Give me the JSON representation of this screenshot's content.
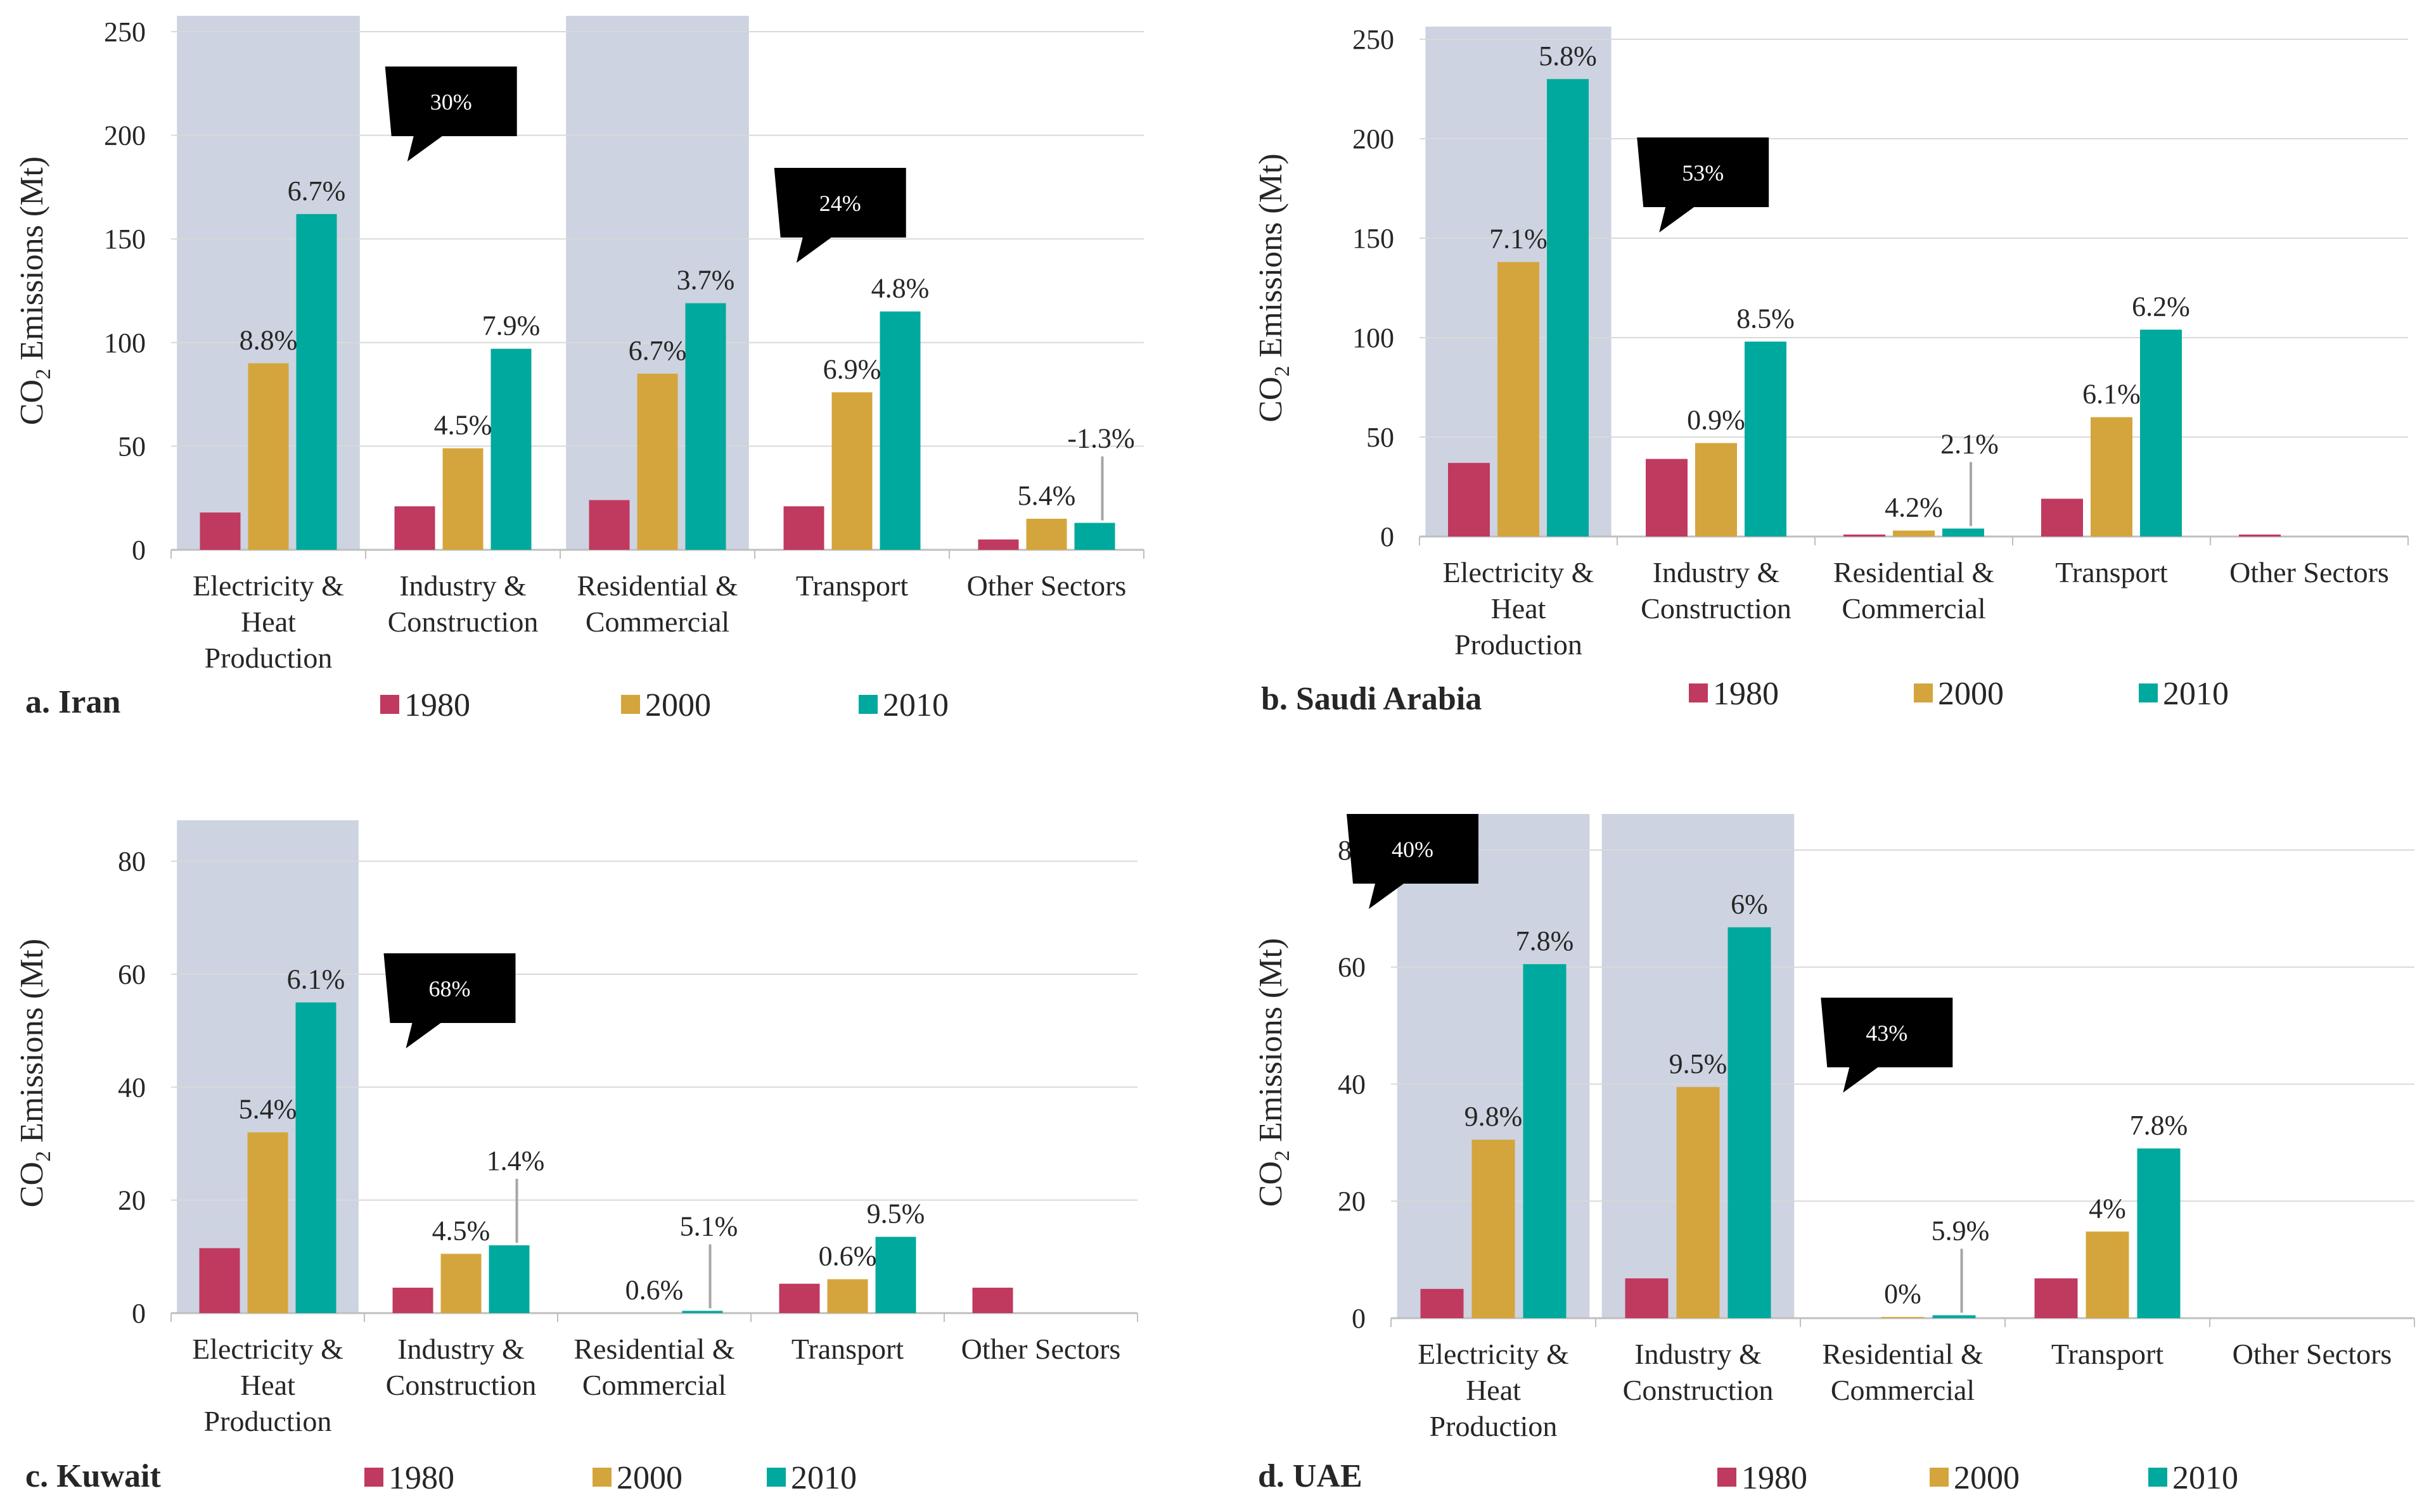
{
  "colors": {
    "highlight": "#cdd3e0",
    "grid": "#d9d9d9",
    "axis": "#bfbfbf",
    "callout": "#000000",
    "leader": "#a6a6a6"
  },
  "legend_labels": [
    "1980",
    "2000",
    "2010"
  ],
  "chart_data": [
    {
      "type": "bar",
      "panel_label": "a. Iran",
      "ylabel": "CO2 Emissions (Mt)",
      "ylim": [
        0,
        250
      ],
      "yticks": [
        "0",
        "50",
        "100",
        "150",
        "200",
        "250"
      ],
      "categories": [
        "Electricity & Heat Production",
        "Industry & Construction",
        "Residential & Commercial",
        "Transport",
        "Other Sectors"
      ],
      "highlighted_categories": [
        0,
        2
      ],
      "series": [
        {
          "name": "1980",
          "color": "#c0395f",
          "values": [
            18,
            21,
            24,
            21,
            5
          ]
        },
        {
          "name": "2000",
          "color": "#d4a53c",
          "values": [
            90,
            49,
            85,
            76,
            15
          ]
        },
        {
          "name": "2010",
          "color": "#00a99d",
          "values": [
            162,
            97,
            119,
            115,
            13
          ]
        }
      ],
      "growth_labels": [
        {
          "category": 0,
          "series": 1,
          "text": "8.8%"
        },
        {
          "category": 0,
          "series": 2,
          "text": "6.7%"
        },
        {
          "category": 1,
          "series": 1,
          "text": "4.5%"
        },
        {
          "category": 1,
          "series": 2,
          "text": "7.9%"
        },
        {
          "category": 2,
          "series": 1,
          "text": "6.7%"
        },
        {
          "category": 2,
          "series": 2,
          "text": "3.7%"
        },
        {
          "category": 3,
          "series": 1,
          "text": "6.9%"
        },
        {
          "category": 3,
          "series": 2,
          "text": "4.8%"
        },
        {
          "category": 4,
          "series": 1,
          "text": "5.4%"
        },
        {
          "category": 4,
          "series": 2,
          "text": "-1.3%",
          "leader": true
        }
      ],
      "callouts": [
        {
          "text": "30%",
          "after_category": 0
        },
        {
          "text": "24%",
          "after_category": 2
        }
      ]
    },
    {
      "type": "bar",
      "panel_label": "b. Saudi Arabia",
      "ylabel": "CO2 Emissions (Mt)",
      "ylim": [
        0,
        250
      ],
      "yticks": [
        "0",
        "50",
        "100",
        "150",
        "200",
        "250"
      ],
      "categories": [
        "Electricity & Heat Production",
        "Industry & Construction",
        "Residential & Commercial",
        "Transport",
        "Other Sectors"
      ],
      "highlighted_categories": [
        0
      ],
      "series": [
        {
          "name": "1980",
          "color": "#c0395f",
          "values": [
            37,
            39,
            1,
            19,
            1
          ]
        },
        {
          "name": "2000",
          "color": "#d4a53c",
          "values": [
            138,
            47,
            3,
            60,
            0
          ]
        },
        {
          "name": "2010",
          "color": "#00a99d",
          "values": [
            230,
            98,
            4,
            104,
            0
          ]
        }
      ],
      "growth_labels": [
        {
          "category": 0,
          "series": 1,
          "text": "7.1%"
        },
        {
          "category": 0,
          "series": 2,
          "text": "5.8%"
        },
        {
          "category": 1,
          "series": 1,
          "text": "0.9%"
        },
        {
          "category": 1,
          "series": 2,
          "text": "8.5%"
        },
        {
          "category": 2,
          "series": 1,
          "text": "4.2%"
        },
        {
          "category": 2,
          "series": 2,
          "text": "2.1%",
          "leader": true
        },
        {
          "category": 3,
          "series": 1,
          "text": "6.1%"
        },
        {
          "category": 3,
          "series": 2,
          "text": "6.2%"
        }
      ],
      "callouts": [
        {
          "text": "53%",
          "after_category": 0
        }
      ]
    },
    {
      "type": "bar",
      "panel_label": "c. Kuwait",
      "ylabel": "CO2 Emissions (Mt)",
      "ylim": [
        0,
        85
      ],
      "yticks": [
        "0",
        "20",
        "40",
        "60",
        "80"
      ],
      "categories": [
        "Electricity & Heat Production",
        "Industry & Construction",
        "Residential & Commercial",
        "Transport",
        "Other Sectors"
      ],
      "highlighted_categories": [
        0
      ],
      "series": [
        {
          "name": "1980",
          "color": "#c0395f",
          "values": [
            11.5,
            4.5,
            0,
            5.2,
            4.5
          ]
        },
        {
          "name": "2000",
          "color": "#d4a53c",
          "values": [
            32,
            10.5,
            0,
            6,
            0
          ]
        },
        {
          "name": "2010",
          "color": "#00a99d",
          "values": [
            55,
            12,
            0.4,
            13.5,
            0
          ]
        }
      ],
      "growth_labels": [
        {
          "category": 0,
          "series": 1,
          "text": "5.4%"
        },
        {
          "category": 0,
          "series": 2,
          "text": "6.1%"
        },
        {
          "category": 1,
          "series": 1,
          "text": "4.5%"
        },
        {
          "category": 1,
          "series": 2,
          "text": "1.4%",
          "leader": true
        },
        {
          "category": 2,
          "series": 1,
          "text": "0.6%"
        },
        {
          "category": 2,
          "series": 2,
          "text": "5.1%",
          "leader": true
        },
        {
          "category": 3,
          "series": 1,
          "text": "0.6%"
        },
        {
          "category": 3,
          "series": 2,
          "text": "9.5%"
        }
      ],
      "callouts": [
        {
          "text": "68%",
          "after_category": 0
        }
      ]
    },
    {
      "type": "bar",
      "panel_label": "d. UAE",
      "ylabel": "CO2 Emissions (Mt)",
      "ylim": [
        0,
        84
      ],
      "yticks": [
        "0",
        "20",
        "40",
        "60",
        "80"
      ],
      "categories": [
        "Electricity & Heat Production",
        "Industry & Construction",
        "Residential & Commercial",
        "Transport",
        "Other Sectors"
      ],
      "highlighted_categories": [
        0,
        1
      ],
      "series": [
        {
          "name": "1980",
          "color": "#c0395f",
          "values": [
            5,
            6.8,
            0,
            6.8,
            0
          ]
        },
        {
          "name": "2000",
          "color": "#d4a53c",
          "values": [
            30.5,
            39.5,
            0.2,
            14.8,
            0
          ]
        },
        {
          "name": "2010",
          "color": "#00a99d",
          "values": [
            60.5,
            66.8,
            0.5,
            29,
            0
          ]
        }
      ],
      "growth_labels": [
        {
          "category": 0,
          "series": 1,
          "text": "9.8%"
        },
        {
          "category": 0,
          "series": 2,
          "text": "7.8%"
        },
        {
          "category": 1,
          "series": 1,
          "text": "9.5%"
        },
        {
          "category": 1,
          "series": 2,
          "text": "6%"
        },
        {
          "category": 2,
          "series": 1,
          "text": "0%"
        },
        {
          "category": 2,
          "series": 2,
          "text": "5.9%",
          "leader": true
        },
        {
          "category": 3,
          "series": 1,
          "text": "4%"
        },
        {
          "category": 3,
          "series": 2,
          "text": "7.8%"
        }
      ],
      "callouts": [
        {
          "text": "40%",
          "after_category": -1
        },
        {
          "text": "43%",
          "after_category": 1
        }
      ]
    }
  ]
}
